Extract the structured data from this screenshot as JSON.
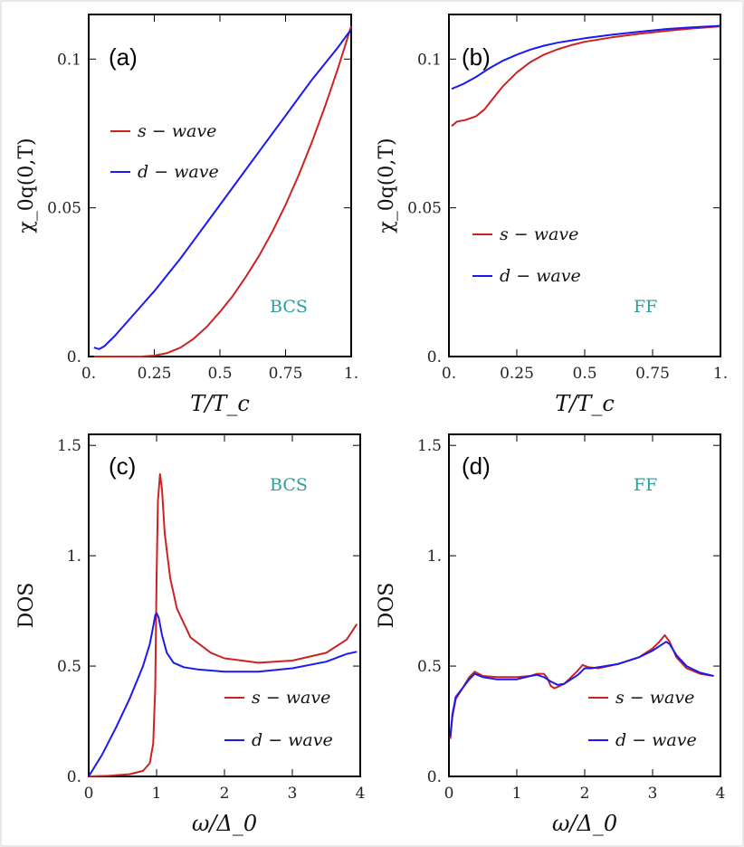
{
  "colors": {
    "s_wave": "#cc2222",
    "d_wave": "#1a1aee",
    "annotation": "#2a9d9d"
  },
  "chart_data": [
    {
      "id": "a",
      "type": "line",
      "panel_label": "(a)",
      "annotation": "BCS",
      "xlabel": "T/T_c",
      "ylabel": "χ_0q(0,T)",
      "xlim": [
        0,
        1
      ],
      "ylim": [
        0,
        0.115
      ],
      "xticks": [
        0,
        0.25,
        0.5,
        0.75,
        1
      ],
      "xtick_labels": [
        "0.",
        "0.25",
        "0.5",
        "0.75",
        "1."
      ],
      "yticks": [
        0,
        0.05,
        0.1
      ],
      "ytick_labels": [
        "0.",
        "0.05",
        "0.1"
      ],
      "legend_position": "upper-left",
      "series": [
        {
          "name": "s − wave",
          "color": "#cc2222",
          "x": [
            0.02,
            0.1,
            0.2,
            0.25,
            0.3,
            0.35,
            0.4,
            0.45,
            0.5,
            0.55,
            0.6,
            0.65,
            0.7,
            0.75,
            0.8,
            0.85,
            0.9,
            0.95,
            1.0
          ],
          "y": [
            0,
            0,
            0,
            0.0003,
            0.0012,
            0.003,
            0.006,
            0.01,
            0.015,
            0.0205,
            0.027,
            0.034,
            0.042,
            0.051,
            0.061,
            0.072,
            0.084,
            0.097,
            0.111
          ]
        },
        {
          "name": "d − wave",
          "color": "#1a1aee",
          "x": [
            0.02,
            0.04,
            0.06,
            0.1,
            0.15,
            0.2,
            0.25,
            0.3,
            0.35,
            0.4,
            0.45,
            0.5,
            0.55,
            0.6,
            0.65,
            0.7,
            0.75,
            0.8,
            0.85,
            0.9,
            0.95,
            1.0
          ],
          "y": [
            0.003,
            0.0025,
            0.0035,
            0.007,
            0.012,
            0.017,
            0.022,
            0.0275,
            0.033,
            0.039,
            0.045,
            0.051,
            0.057,
            0.063,
            0.069,
            0.075,
            0.081,
            0.087,
            0.093,
            0.0985,
            0.104,
            0.11
          ]
        }
      ]
    },
    {
      "id": "b",
      "type": "line",
      "panel_label": "(b)",
      "annotation": "FF",
      "xlabel": "T/T_c",
      "ylabel": "χ_0q(0,T)",
      "xlim": [
        0,
        1
      ],
      "ylim": [
        0,
        0.115
      ],
      "xticks": [
        0,
        0.25,
        0.5,
        0.75,
        1
      ],
      "xtick_labels": [
        "0.",
        "0.25",
        "0.5",
        "0.75",
        "1."
      ],
      "yticks": [
        0,
        0.05,
        0.1
      ],
      "ytick_labels": [
        "0.",
        "0.05",
        "0.1"
      ],
      "legend_position": "center-left",
      "series": [
        {
          "name": "s − wave",
          "color": "#cc2222",
          "x": [
            0.01,
            0.03,
            0.06,
            0.1,
            0.13,
            0.16,
            0.2,
            0.25,
            0.3,
            0.35,
            0.4,
            0.45,
            0.5,
            0.6,
            0.7,
            0.8,
            0.9,
            1.0
          ],
          "y": [
            0.0775,
            0.079,
            0.0795,
            0.0808,
            0.083,
            0.0865,
            0.091,
            0.0955,
            0.099,
            0.1015,
            0.1033,
            0.1047,
            0.1058,
            0.1073,
            0.1085,
            0.1095,
            0.1103,
            0.111
          ]
        },
        {
          "name": "d − wave",
          "color": "#1a1aee",
          "x": [
            0.01,
            0.05,
            0.1,
            0.15,
            0.2,
            0.25,
            0.3,
            0.35,
            0.4,
            0.5,
            0.6,
            0.7,
            0.8,
            0.9,
            1.0
          ],
          "y": [
            0.09,
            0.0915,
            0.094,
            0.097,
            0.0995,
            0.1015,
            0.1032,
            0.1045,
            0.1055,
            0.107,
            0.1082,
            0.1092,
            0.1101,
            0.1107,
            0.1112
          ]
        }
      ]
    },
    {
      "id": "c",
      "type": "line",
      "panel_label": "(c)",
      "annotation": "BCS",
      "xlabel": "ω/Δ_0",
      "ylabel": "DOS",
      "xlim": [
        0,
        4
      ],
      "ylim": [
        0,
        1.55
      ],
      "xticks": [
        0,
        1,
        2,
        3,
        4
      ],
      "xtick_labels": [
        "0",
        "1",
        "2",
        "3",
        "4"
      ],
      "yticks": [
        0,
        0.5,
        1,
        1.5
      ],
      "ytick_labels": [
        "0.",
        "0.5",
        "1.",
        "1.5"
      ],
      "legend_position": "lower-right",
      "series": [
        {
          "name": "s − wave",
          "color": "#cc2222",
          "x": [
            0,
            0.3,
            0.6,
            0.8,
            0.9,
            0.95,
            0.98,
            1.0,
            1.02,
            1.05,
            1.08,
            1.12,
            1.2,
            1.3,
            1.5,
            1.8,
            2.0,
            2.5,
            3.0,
            3.5,
            3.8,
            3.95
          ],
          "y": [
            0,
            0.003,
            0.01,
            0.025,
            0.06,
            0.15,
            0.4,
            0.9,
            1.25,
            1.37,
            1.3,
            1.1,
            0.9,
            0.76,
            0.63,
            0.56,
            0.535,
            0.515,
            0.525,
            0.56,
            0.62,
            0.69
          ]
        },
        {
          "name": "d − wave",
          "color": "#1a1aee",
          "x": [
            0,
            0.2,
            0.4,
            0.6,
            0.8,
            0.9,
            0.95,
            0.98,
            1.0,
            1.03,
            1.08,
            1.15,
            1.25,
            1.4,
            1.6,
            2.0,
            2.5,
            3.0,
            3.5,
            3.8,
            3.95
          ],
          "y": [
            0,
            0.1,
            0.22,
            0.35,
            0.5,
            0.6,
            0.68,
            0.73,
            0.74,
            0.72,
            0.64,
            0.56,
            0.515,
            0.495,
            0.485,
            0.475,
            0.475,
            0.49,
            0.52,
            0.555,
            0.565
          ]
        }
      ]
    },
    {
      "id": "d",
      "type": "line",
      "panel_label": "(d)",
      "annotation": "FF",
      "xlabel": "ω/Δ_0",
      "ylabel": "DOS",
      "xlim": [
        0,
        4
      ],
      "ylim": [
        0,
        1.55
      ],
      "xticks": [
        0,
        1,
        2,
        3,
        4
      ],
      "xtick_labels": [
        "0",
        "1",
        "2",
        "3",
        "4"
      ],
      "yticks": [
        0,
        0.5,
        1,
        1.5
      ],
      "ytick_labels": [
        "0.",
        "0.5",
        "1.",
        "1.5"
      ],
      "legend_position": "lower-right",
      "series": [
        {
          "name": "s − wave",
          "color": "#cc2222",
          "x": [
            0.02,
            0.05,
            0.1,
            0.2,
            0.3,
            0.38,
            0.5,
            0.7,
            1.0,
            1.2,
            1.3,
            1.4,
            1.45,
            1.5,
            1.55,
            1.6,
            1.7,
            1.8,
            1.9,
            1.97,
            2.05,
            2.2,
            2.5,
            2.8,
            3.0,
            3.1,
            3.18,
            3.25,
            3.35,
            3.5,
            3.7,
            3.9
          ],
          "y": [
            0.17,
            0.27,
            0.35,
            0.4,
            0.45,
            0.475,
            0.455,
            0.45,
            0.45,
            0.455,
            0.465,
            0.465,
            0.445,
            0.41,
            0.4,
            0.405,
            0.42,
            0.45,
            0.48,
            0.505,
            0.495,
            0.49,
            0.51,
            0.54,
            0.58,
            0.61,
            0.64,
            0.61,
            0.54,
            0.49,
            0.465,
            0.455
          ]
        },
        {
          "name": "d − wave",
          "color": "#1a1aee",
          "x": [
            0.02,
            0.05,
            0.1,
            0.2,
            0.3,
            0.38,
            0.5,
            0.7,
            1.0,
            1.2,
            1.3,
            1.4,
            1.5,
            1.6,
            1.7,
            1.8,
            1.9,
            2.0,
            2.1,
            2.3,
            2.5,
            2.8,
            3.0,
            3.1,
            3.2,
            3.25,
            3.35,
            3.5,
            3.7,
            3.9
          ],
          "y": [
            0.18,
            0.28,
            0.36,
            0.4,
            0.44,
            0.465,
            0.45,
            0.44,
            0.44,
            0.455,
            0.46,
            0.45,
            0.43,
            0.415,
            0.42,
            0.44,
            0.46,
            0.49,
            0.49,
            0.5,
            0.51,
            0.54,
            0.57,
            0.59,
            0.61,
            0.6,
            0.55,
            0.5,
            0.47,
            0.455
          ]
        }
      ]
    }
  ]
}
